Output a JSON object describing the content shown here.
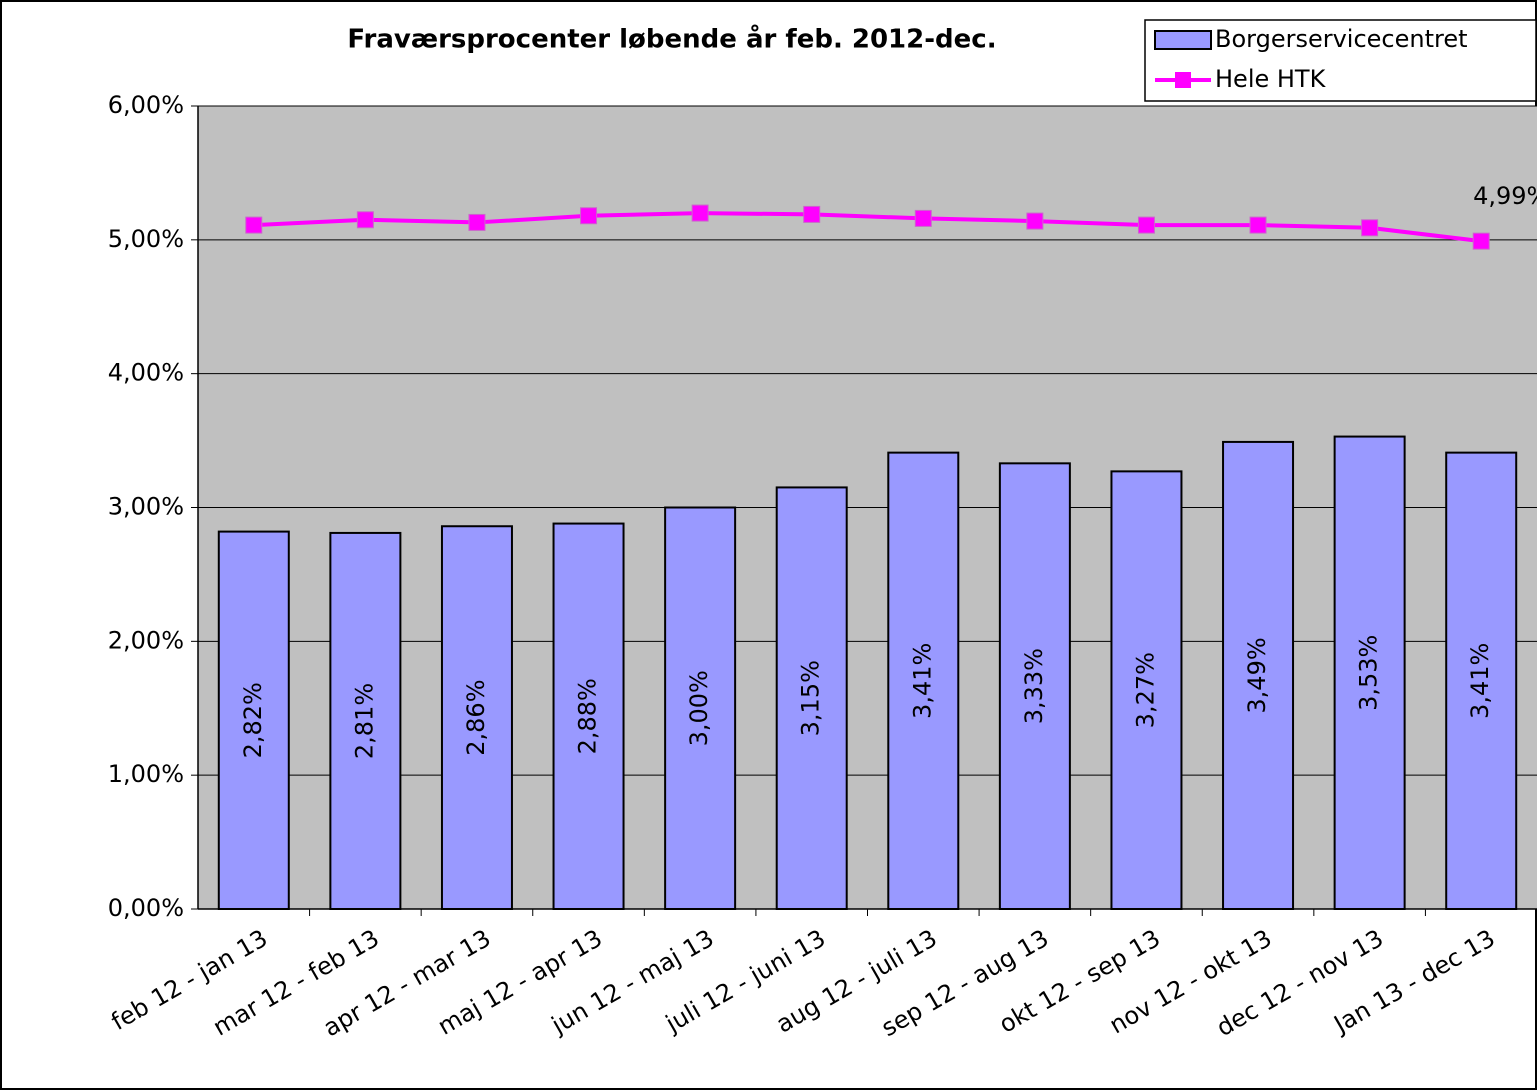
{
  "chart_data": {
    "type": "bar",
    "title": "Fraværsprocenter løbende år feb. 2012-dec.",
    "categories": [
      "feb 12 - jan 13",
      "mar 12 - feb 13",
      "apr 12 - mar 13",
      "maj 12 - apr 13",
      "jun 12 - maj 13",
      "juli 12 - juni 13",
      "aug 12 - juli 13",
      "sep 12 - aug 13",
      "okt 12 - sep 13",
      "nov 12 - okt 13",
      "dec 12 - nov 13",
      "Jan 13 - dec 13"
    ],
    "series": [
      {
        "name": "Borgerservicecentret",
        "type": "bar",
        "color": "#9999ff",
        "values": [
          2.82,
          2.81,
          2.86,
          2.88,
          3.0,
          3.15,
          3.41,
          3.33,
          3.27,
          3.49,
          3.53,
          3.41
        ],
        "value_labels": [
          "2,82%",
          "2,81%",
          "2,86%",
          "2,88%",
          "3,00%",
          "3,15%",
          "3,41%",
          "3,33%",
          "3,27%",
          "3,49%",
          "3,53%",
          "3,41%"
        ]
      },
      {
        "name": "Hele HTK",
        "type": "line",
        "color": "#ff00ff",
        "values": [
          5.11,
          5.15,
          5.13,
          5.18,
          5.2,
          5.19,
          5.16,
          5.14,
          5.11,
          5.11,
          5.09,
          4.99
        ],
        "value_labels": [
          null,
          null,
          null,
          null,
          null,
          null,
          null,
          null,
          null,
          null,
          null,
          "4,99%"
        ]
      }
    ],
    "ylim": [
      0,
      6
    ],
    "yticks": [
      {
        "value": 0,
        "label": "0,00%"
      },
      {
        "value": 1,
        "label": "1,00%"
      },
      {
        "value": 2,
        "label": "2,00%"
      },
      {
        "value": 3,
        "label": "3,00%"
      },
      {
        "value": 4,
        "label": "4,00%"
      },
      {
        "value": 5,
        "label": "5,00%"
      },
      {
        "value": 6,
        "label": "6,00%"
      }
    ],
    "grid": true,
    "legend": "top-right"
  }
}
